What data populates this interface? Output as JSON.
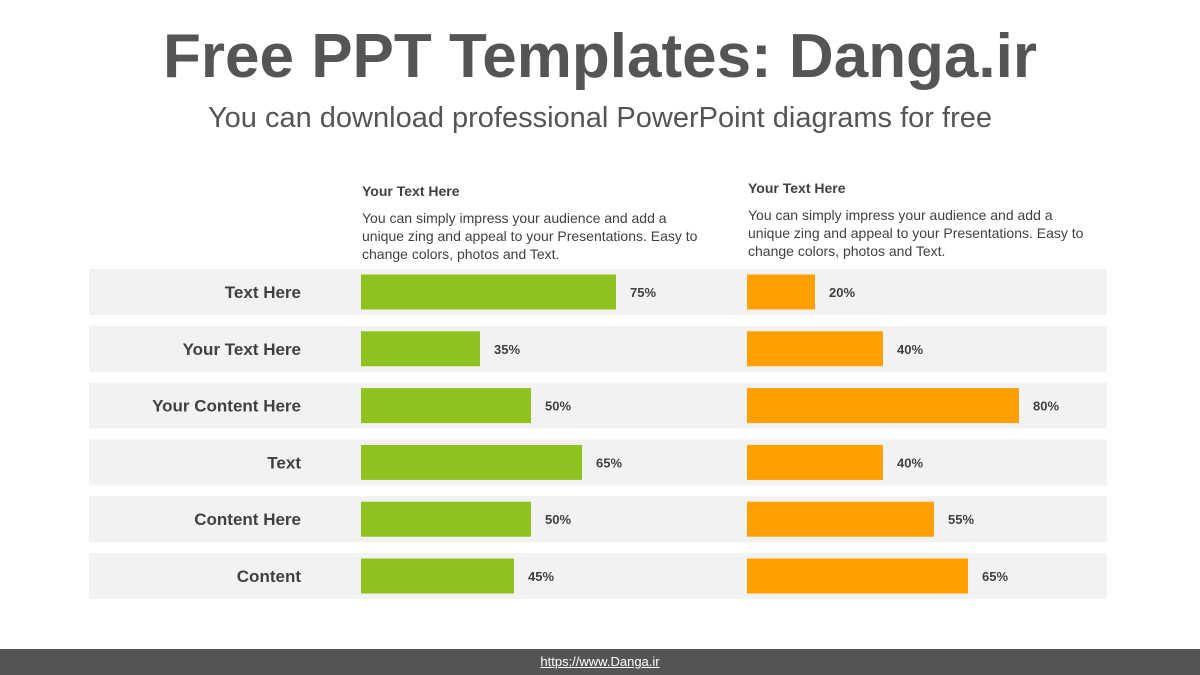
{
  "header": {
    "title": "Free PPT Templates: Danga.ir",
    "subtitle": "You can download professional PowerPoint diagrams for free"
  },
  "columns": [
    {
      "heading": "Your Text  Here",
      "body": "You can simply impress your audience and add a unique zing and appeal to your Presentations. Easy to change colors, photos and Text."
    },
    {
      "heading": "Your Text  Here",
      "body": "You can simply impress your audience and add a unique zing and appeal to your Presentations. Easy to change colors, photos and Text."
    }
  ],
  "chart_data": {
    "type": "bar",
    "orientation": "horizontal",
    "categories": [
      "Text Here",
      "Your Text Here",
      "Your Content  Here",
      "Text",
      "Content Here",
      "Content"
    ],
    "series": [
      {
        "values": [
          75,
          35,
          50,
          65,
          50,
          45
        ],
        "labels": [
          "75%",
          "35%",
          "50%",
          "65%",
          "50%",
          "45%"
        ],
        "color": "#8DC21F"
      },
      {
        "values": [
          20,
          40,
          80,
          40,
          55,
          65
        ],
        "labels": [
          "20%",
          "40%",
          "80%",
          "40%",
          "55%",
          "65%"
        ],
        "color": "#FFA000"
      }
    ],
    "xlim": [
      0,
      100
    ],
    "row_background": "#F2F2F2",
    "label_color": "#404040"
  },
  "footer": {
    "url": "https://www.Danga.ir"
  }
}
